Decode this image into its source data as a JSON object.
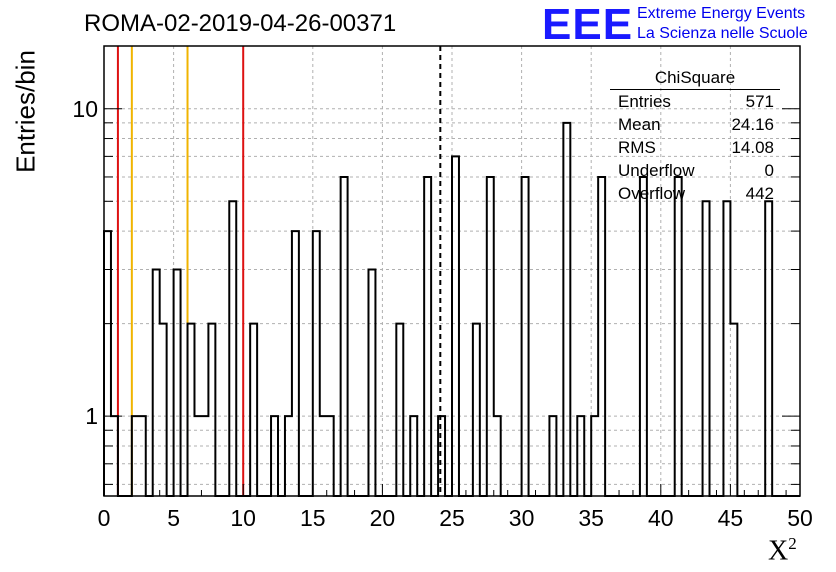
{
  "header": {
    "title": "ROMA-02-2019-04-26-00371",
    "logo_text": "EEE",
    "logo_line1": "Extreme Energy Events",
    "logo_line2": "La Scienza nelle Scuole"
  },
  "stats_box": {
    "title": "ChiSquare",
    "rows": [
      {
        "label": "Entries",
        "value": "571"
      },
      {
        "label": "Mean",
        "value": "24.16"
      },
      {
        "label": "RMS",
        "value": "14.08"
      },
      {
        "label": "Underflow",
        "value": "0"
      },
      {
        "label": "Overflow",
        "value": "442"
      }
    ]
  },
  "chart_data": {
    "type": "bar",
    "style": "step-histogram",
    "title": "ROMA-02-2019-04-26-00371",
    "xlabel": "X",
    "xlabel_superscript": "2",
    "ylabel": "Entries/bin",
    "xlim": [
      0,
      50
    ],
    "ylim": [
      0.55,
      16
    ],
    "yscale": "log",
    "grid": true,
    "bin_width": 0.5,
    "x_ticks": [
      "0",
      "5",
      "10",
      "15",
      "20",
      "25",
      "30",
      "35",
      "40",
      "45",
      "50"
    ],
    "y_ticks": [
      "1",
      "10"
    ],
    "bins": [
      {
        "x": 0.0,
        "value": 4
      },
      {
        "x": 0.5,
        "value": 1
      },
      {
        "x": 2.0,
        "value": 1
      },
      {
        "x": 2.5,
        "value": 1
      },
      {
        "x": 3.5,
        "value": 3
      },
      {
        "x": 4.0,
        "value": 2
      },
      {
        "x": 5.0,
        "value": 3
      },
      {
        "x": 6.0,
        "value": 2
      },
      {
        "x": 6.5,
        "value": 1
      },
      {
        "x": 7.0,
        "value": 1
      },
      {
        "x": 7.5,
        "value": 2
      },
      {
        "x": 9.0,
        "value": 5
      },
      {
        "x": 10.5,
        "value": 2
      },
      {
        "x": 12.0,
        "value": 1
      },
      {
        "x": 13.0,
        "value": 1
      },
      {
        "x": 13.5,
        "value": 4
      },
      {
        "x": 15.0,
        "value": 4
      },
      {
        "x": 15.5,
        "value": 1
      },
      {
        "x": 16.0,
        "value": 1
      },
      {
        "x": 17.0,
        "value": 6
      },
      {
        "x": 19.0,
        "value": 3
      },
      {
        "x": 21.0,
        "value": 2
      },
      {
        "x": 22.0,
        "value": 1
      },
      {
        "x": 23.0,
        "value": 6
      },
      {
        "x": 24.0,
        "value": 1
      },
      {
        "x": 25.0,
        "value": 7
      },
      {
        "x": 26.5,
        "value": 2
      },
      {
        "x": 27.5,
        "value": 6
      },
      {
        "x": 28.0,
        "value": 1
      },
      {
        "x": 30.0,
        "value": 6
      },
      {
        "x": 32.0,
        "value": 1
      },
      {
        "x": 33.0,
        "value": 9
      },
      {
        "x": 34.0,
        "value": 1
      },
      {
        "x": 35.0,
        "value": 1
      },
      {
        "x": 35.5,
        "value": 6
      },
      {
        "x": 38.5,
        "value": 6
      },
      {
        "x": 41.0,
        "value": 6
      },
      {
        "x": 43.0,
        "value": 5
      },
      {
        "x": 44.5,
        "value": 5
      },
      {
        "x": 45.0,
        "value": 2
      },
      {
        "x": 47.5,
        "value": 5
      }
    ],
    "markers": [
      {
        "x": 1,
        "color": "#dd1111",
        "style": "solid"
      },
      {
        "x": 2,
        "color": "#f0b400",
        "style": "solid"
      },
      {
        "x": 6,
        "color": "#f0b400",
        "style": "solid"
      },
      {
        "x": 10,
        "color": "#dd1111",
        "style": "solid"
      },
      {
        "x": 24.16,
        "color": "#000000",
        "style": "dashed"
      }
    ]
  }
}
